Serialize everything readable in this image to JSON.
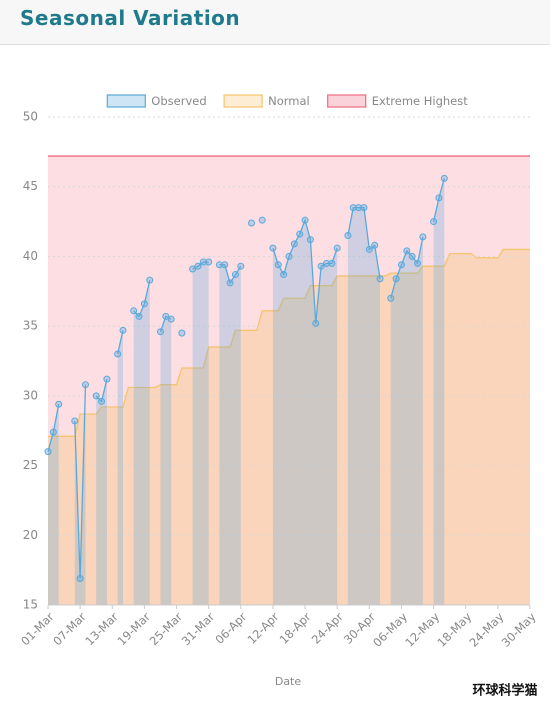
{
  "header": {
    "title": "Seasonal Variation"
  },
  "watermark": "环球科学猫",
  "chart_data": {
    "type": "line",
    "x_label": "Date",
    "categories": [
      "01-Mar",
      null,
      null,
      null,
      null,
      null,
      "07-Mar",
      null,
      null,
      null,
      null,
      null,
      "13-Mar",
      null,
      null,
      null,
      null,
      null,
      "19-Mar",
      null,
      null,
      null,
      null,
      null,
      "25-Mar",
      null,
      null,
      null,
      null,
      null,
      "31-Mar",
      null,
      null,
      null,
      null,
      null,
      "06-Apr",
      null,
      null,
      null,
      null,
      null,
      "12-Apr",
      null,
      null,
      null,
      null,
      null,
      "18-Apr",
      null,
      null,
      null,
      null,
      null,
      "24-Apr",
      null,
      null,
      null,
      null,
      null,
      "30-Apr",
      null,
      null,
      null,
      null,
      null,
      "06-May",
      null,
      null,
      null,
      null,
      null,
      "12-May",
      null,
      null,
      null,
      null,
      null,
      "18-May",
      null,
      null,
      null,
      null,
      null,
      "24-May",
      null,
      null,
      null,
      null,
      null,
      "30-May"
    ],
    "series": [
      {
        "name": "Observed",
        "color": "#5aa9dc",
        "values": [
          26.0,
          27.4,
          29.4,
          null,
          null,
          28.2,
          16.9,
          30.8,
          null,
          30.0,
          29.6,
          31.2,
          null,
          33.0,
          34.7,
          null,
          36.1,
          35.7,
          36.6,
          38.3,
          null,
          34.6,
          35.7,
          35.5,
          null,
          34.5,
          null,
          39.1,
          39.3,
          39.6,
          39.6,
          null,
          39.4,
          39.4,
          38.1,
          38.7,
          39.3,
          null,
          42.4,
          null,
          42.6,
          null,
          40.6,
          39.4,
          38.7,
          40.0,
          40.9,
          41.6,
          42.6,
          41.2,
          35.2,
          39.3,
          39.5,
          39.5,
          40.6,
          null,
          41.5,
          43.5,
          43.5,
          43.5,
          40.5,
          40.8,
          38.4,
          null,
          37.0,
          38.4,
          39.4,
          40.4,
          40.0,
          39.5,
          41.4,
          null,
          42.5,
          44.2,
          45.6,
          null,
          null,
          null,
          null,
          null,
          null,
          null,
          null,
          null,
          null,
          null,
          null,
          null,
          null,
          null,
          null
        ]
      },
      {
        "name": "Normal",
        "color": "#f5c46f",
        "values": [
          27.1,
          27.1,
          27.1,
          27.1,
          27.1,
          27.1,
          28.7,
          28.7,
          28.7,
          28.7,
          29.2,
          29.2,
          29.2,
          29.2,
          29.2,
          30.6,
          30.6,
          30.6,
          30.6,
          30.6,
          30.6,
          30.8,
          30.8,
          30.8,
          30.8,
          32.0,
          32.0,
          32.0,
          32.0,
          32.0,
          33.5,
          33.5,
          33.5,
          33.5,
          33.5,
          34.7,
          34.7,
          34.7,
          34.7,
          34.7,
          36.1,
          36.1,
          36.1,
          36.1,
          37.0,
          37.0,
          37.0,
          37.0,
          37.0,
          37.9,
          37.9,
          37.9,
          37.9,
          37.9,
          38.6,
          38.6,
          38.6,
          38.6,
          38.6,
          38.6,
          38.6,
          38.6,
          38.6,
          38.6,
          38.8,
          38.8,
          38.8,
          38.8,
          38.8,
          38.8,
          39.3,
          39.3,
          39.3,
          39.3,
          39.3,
          40.2,
          40.2,
          40.2,
          40.2,
          40.2,
          39.9,
          39.9,
          39.9,
          39.9,
          39.9,
          40.5,
          40.5,
          40.5,
          40.5,
          40.5,
          40.5
        ]
      },
      {
        "name": "Extreme Highest",
        "color": "#f06a80",
        "values": [
          47.2,
          47.2,
          47.2,
          47.2,
          47.2,
          47.2,
          47.2,
          47.2,
          47.2,
          47.2,
          47.2,
          47.2,
          47.2,
          47.2,
          47.2,
          47.2,
          47.2,
          47.2,
          47.2,
          47.2,
          47.2,
          47.2,
          47.2,
          47.2,
          47.2,
          47.2,
          47.2,
          47.2,
          47.2,
          47.2,
          47.2,
          47.2,
          47.2,
          47.2,
          47.2,
          47.2,
          47.2,
          47.2,
          47.2,
          47.2,
          47.2,
          47.2,
          47.2,
          47.2,
          47.2,
          47.2,
          47.2,
          47.2,
          47.2,
          47.2,
          47.2,
          47.2,
          47.2,
          47.2,
          47.2,
          47.2,
          47.2,
          47.2,
          47.2,
          47.2,
          47.2,
          47.2,
          47.2,
          47.2,
          47.2,
          47.2,
          47.2,
          47.2,
          47.2,
          47.2,
          47.2,
          47.2,
          47.2,
          47.2,
          47.2,
          47.2,
          47.2,
          47.2,
          47.2,
          47.2,
          47.2,
          47.2,
          47.2,
          47.2,
          47.2,
          47.2,
          47.2,
          47.2,
          47.2,
          47.2,
          47.2
        ]
      }
    ],
    "ylim": [
      15,
      50
    ],
    "yticks": [
      15,
      20,
      25,
      30,
      35,
      40,
      45,
      50
    ],
    "grid": true,
    "legend": "top"
  }
}
